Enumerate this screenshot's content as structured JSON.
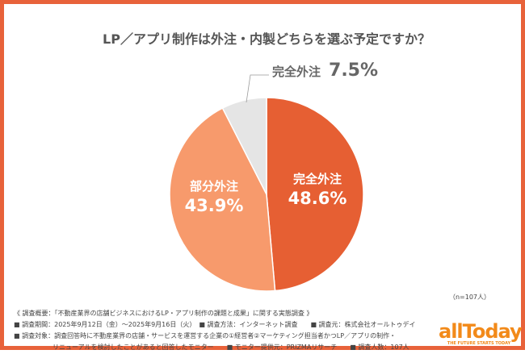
{
  "title": "LP／アプリ制作は外注・内製どちらを選ぶ予定ですか？",
  "chart_data": {
    "type": "pie",
    "title": "LP／アプリ制作は外注・内製どちらを選ぶ予定ですか？",
    "slices": [
      {
        "label": "完全外注",
        "value": 48.6,
        "value_label": "48.6%",
        "color": "#E65F33"
      },
      {
        "label": "部分外注",
        "value": 43.9,
        "value_label": "43.9%",
        "color": "#F79A6C"
      },
      {
        "label": "完全外注",
        "value": 7.5,
        "value_label": "7.5%",
        "color": "#E5E5E5"
      }
    ],
    "start": "top",
    "direction": "clockwise"
  },
  "sample": "（n=107人）",
  "notes": [
    "《 調査概要：「不動産業界の店舗ビジネスにおけるLP・アプリ制作の課題と成果」に関する実態調査 》",
    "■ 調査期間：2025年9月12日（金）～2025年9月16日（火）　■ 調査方法：インターネット調査　　■ 調査元：株式会社オールトゥデイ",
    "■ 調査対象：調査回答時に不動産業界の店舗・サービスを運営する企業の①経営者②マーケティング担当者かつLP／アプリの制作・",
    "　　　　　　リニューアルを検討したことがあると回答したモニター　　■ モニター提供元：PRIZMAリサーチ　　■ 調査人数：107人"
  ],
  "logo": {
    "name": "allToday",
    "tagline": "THE FUTURE STARTS TODAY",
    "color": "#F28A1A"
  }
}
